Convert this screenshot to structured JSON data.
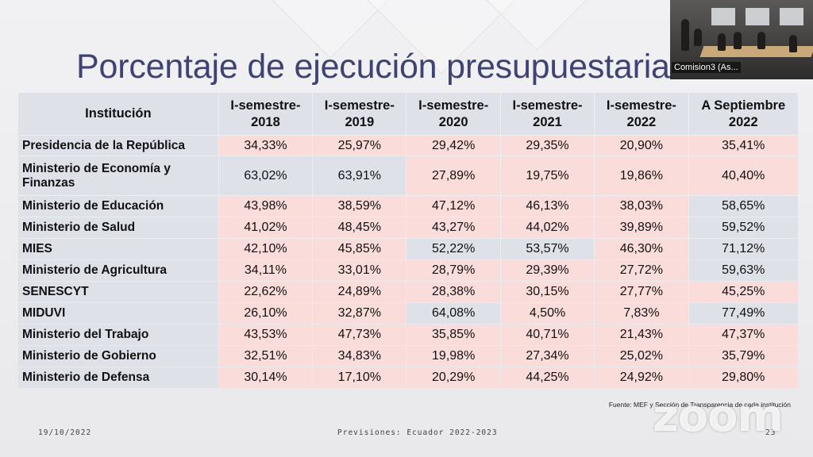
{
  "slide": {
    "title": "Porcentaje de ejecución presupuestaria",
    "table": {
      "headers": [
        "Institución",
        "I-semestre-2018",
        "I-semestre-2019",
        "I-semestre-2020",
        "I-semestre-2021",
        "I-semestre-2022",
        "A Septiembre 2022"
      ],
      "rows": [
        {
          "institution": "Presidencia de la República",
          "values": [
            "34,33%",
            "25,97%",
            "29,42%",
            "29,35%",
            "20,90%",
            "35,41%"
          ]
        },
        {
          "institution": "Ministerio de Economía y Finanzas",
          "values": [
            "63,02%",
            "63,91%",
            "27,89%",
            "19,75%",
            "19,86%",
            "40,40%"
          ]
        },
        {
          "institution": "Ministerio de Educación",
          "values": [
            "43,98%",
            "38,59%",
            "47,12%",
            "46,13%",
            "38,03%",
            "58,65%"
          ]
        },
        {
          "institution": "Ministerio de Salud",
          "values": [
            "41,02%",
            "48,45%",
            "43,27%",
            "44,02%",
            "39,89%",
            "59,52%"
          ]
        },
        {
          "institution": "MIES",
          "values": [
            "42,10%",
            "45,85%",
            "52,22%",
            "53,57%",
            "46,30%",
            "71,12%"
          ]
        },
        {
          "institution": "Ministerio de Agricultura",
          "values": [
            "34,11%",
            "33,01%",
            "28,79%",
            "29,39%",
            "27,72%",
            "59,63%"
          ]
        },
        {
          "institution": "SENESCYT",
          "values": [
            "22,62%",
            "24,89%",
            "28,38%",
            "30,15%",
            "27,77%",
            "45,25%"
          ]
        },
        {
          "institution": "MIDUVI",
          "values": [
            "26,10%",
            "32,87%",
            "64,08%",
            "4,50%",
            "7,83%",
            "77,49%"
          ]
        },
        {
          "institution": "Ministerio del Trabajo",
          "values": [
            "43,53%",
            "47,73%",
            "35,85%",
            "40,71%",
            "21,43%",
            "47,37%"
          ]
        },
        {
          "institution": "Ministerio de Gobierno",
          "values": [
            "32,51%",
            "34,83%",
            "19,98%",
            "27,34%",
            "25,02%",
            "35,79%"
          ]
        },
        {
          "institution": "Ministerio de Defensa",
          "values": [
            "30,14%",
            "17,10%",
            "20,29%",
            "44,25%",
            "24,92%",
            "29,80%"
          ]
        }
      ],
      "highlighted_cells": [
        [
          1,
          0
        ],
        [
          1,
          1
        ],
        [
          2,
          5
        ],
        [
          3,
          5
        ],
        [
          4,
          2
        ],
        [
          4,
          3
        ],
        [
          4,
          5
        ],
        [
          5,
          5
        ],
        [
          7,
          2
        ],
        [
          7,
          5
        ]
      ],
      "colors": {
        "header_bg": "#dfe1e8",
        "highlight_bg": "#dfe1e8",
        "cell_bg": "#fadcda",
        "title": "#3e4374"
      }
    },
    "source": "Fuente: MEF y Sección de Transparencia de cada institución",
    "footer": {
      "date": "19/10/2022",
      "center": "Previsiones: Ecuador 2022-2023",
      "page": "23"
    }
  },
  "zoom": {
    "watermark": "zoom",
    "participant_video": {
      "name": "Comision3 (As..."
    }
  }
}
